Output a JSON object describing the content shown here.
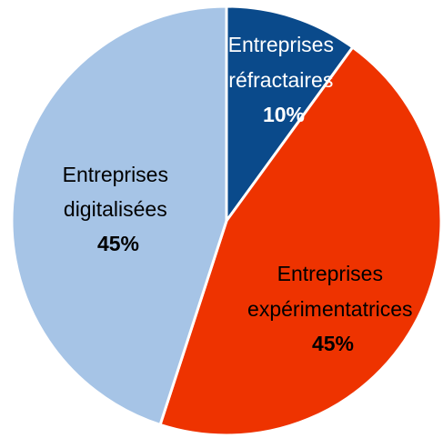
{
  "chart_data": {
    "type": "pie",
    "title": "",
    "grid": false,
    "legend": "none",
    "slices": [
      {
        "label_lines": [
          "Entreprises",
          "réfractaires"
        ],
        "value": 10,
        "value_label": "10%",
        "color": "#0a4a8b",
        "text_color": "#ffffff"
      },
      {
        "label_lines": [
          "Entreprises",
          "expérimentatrices"
        ],
        "value": 45,
        "value_label": "45%",
        "color": "#ee3300",
        "text_color": "#000000"
      },
      {
        "label_lines": [
          "Entreprises",
          "digitalisées"
        ],
        "value": 45,
        "value_label": "45%",
        "color": "#a6c4e6",
        "text_color": "#000000"
      }
    ]
  }
}
